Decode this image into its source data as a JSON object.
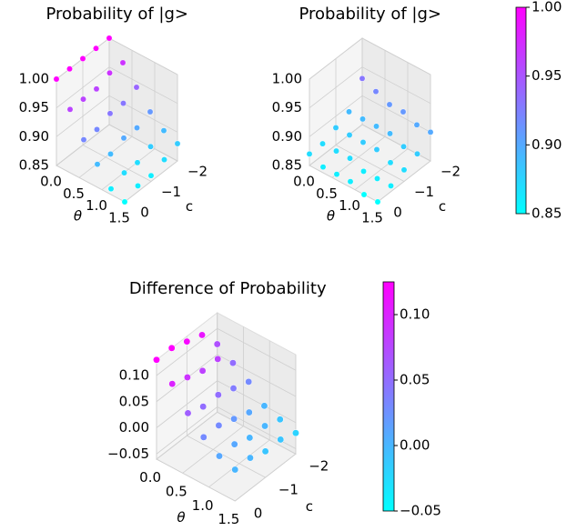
{
  "chart_data": [
    {
      "type": "scatter3d",
      "title": "Probability of |g>",
      "xlabel": "θ",
      "ylabel": "c",
      "x": [
        0,
        0,
        0,
        0,
        0,
        0.3,
        0.3,
        0.3,
        0.3,
        0.3,
        0.6,
        0.6,
        0.6,
        0.6,
        0.6,
        0.9,
        0.9,
        0.9,
        0.9,
        0.9,
        1.2,
        1.2,
        1.2,
        1.2,
        1.2,
        1.5,
        1.5,
        1.5,
        1.5,
        1.5
      ],
      "y": [
        -2,
        -1.5,
        -1,
        -0.5,
        0,
        -2,
        -1.5,
        -1,
        -0.5,
        0,
        -2,
        -1.5,
        -1,
        -0.5,
        0,
        -2,
        -1.5,
        -1,
        -0.5,
        0,
        -2,
        -1.5,
        -1,
        -0.5,
        0,
        -2,
        -1.5,
        -1,
        -0.5,
        0
      ],
      "z": [
        1.0,
        1.0,
        1.0,
        1.0,
        1.0,
        0.97,
        0.97,
        0.96,
        0.96,
        0.96,
        0.94,
        0.93,
        0.93,
        0.92,
        0.92,
        0.91,
        0.9,
        0.9,
        0.89,
        0.89,
        0.89,
        0.88,
        0.87,
        0.87,
        0.86,
        0.88,
        0.87,
        0.86,
        0.86,
        0.85
      ],
      "xlim": [
        0,
        1.5
      ],
      "xticks": [
        {
          "value": 0,
          "label": "0.0"
        },
        0.5,
        {
          "value": 1,
          "label": "1.0"
        },
        1.5
      ],
      "ylim": [
        0,
        -2
      ],
      "yticks": [
        {
          "value": -2,
          "label": "−2"
        },
        {
          "value": -1,
          "label": "−1"
        },
        0
      ],
      "zlim": [
        0.85,
        1.0
      ],
      "zticks": [
        0.85,
        {
          "value": 0.9,
          "label": "0.90"
        },
        0.95,
        {
          "value": 1,
          "label": "1.00"
        }
      ],
      "clim": [
        0.85,
        1.0
      ],
      "colormap": [
        "#00ffff",
        "#ff00ff"
      ]
    },
    {
      "type": "scatter3d",
      "title": "Probability of |g>",
      "xlabel": "θ",
      "ylabel": "c",
      "x": [
        0,
        0,
        0,
        0,
        0,
        0.3,
        0.3,
        0.3,
        0.3,
        0.3,
        0.6,
        0.6,
        0.6,
        0.6,
        0.6,
        0.9,
        0.9,
        0.9,
        0.9,
        0.9,
        1.2,
        1.2,
        1.2,
        1.2,
        1.2,
        1.5,
        1.5,
        1.5,
        1.5,
        1.5
      ],
      "y": [
        -2,
        -1.5,
        -1,
        -0.5,
        0,
        -2,
        -1.5,
        -1,
        -0.5,
        0,
        -2,
        -1.5,
        -1,
        -0.5,
        0,
        -2,
        -1.5,
        -1,
        -0.5,
        0,
        -2,
        -1.5,
        -1,
        -0.5,
        0,
        -2,
        -1.5,
        -1,
        -0.5,
        0
      ],
      "z": [
        0.93,
        0.89,
        0.88,
        0.87,
        0.87,
        0.92,
        0.89,
        0.88,
        0.87,
        0.86,
        0.91,
        0.89,
        0.88,
        0.87,
        0.86,
        0.91,
        0.89,
        0.88,
        0.86,
        0.86,
        0.9,
        0.88,
        0.87,
        0.86,
        0.85,
        0.9,
        0.88,
        0.87,
        0.86,
        0.85
      ],
      "xlim": [
        0,
        1.5
      ],
      "xticks": [
        {
          "value": 0,
          "label": "0.0"
        },
        0.5,
        {
          "value": 1,
          "label": "1.0"
        },
        1.5
      ],
      "ylim": [
        0,
        -2
      ],
      "yticks": [
        {
          "value": -2,
          "label": "−2"
        },
        {
          "value": -1,
          "label": "−1"
        },
        0
      ],
      "zlim": [
        0.85,
        1.0
      ],
      "zticks": [
        0.85,
        {
          "value": 0.9,
          "label": "0.90"
        },
        0.95,
        {
          "value": 1,
          "label": "1.00"
        }
      ],
      "clim": [
        0.85,
        1.0
      ],
      "cticks": [
        0.85,
        {
          "value": 0.9,
          "label": "0.90"
        },
        0.95,
        {
          "value": 1,
          "label": "1.00"
        }
      ],
      "colormap": [
        "#00ffff",
        "#ff00ff"
      ]
    },
    {
      "type": "scatter3d",
      "title": "Difference of Probability",
      "xlabel": "θ",
      "ylabel": "c",
      "x": [
        0,
        0,
        0,
        0,
        0,
        0.3,
        0.3,
        0.3,
        0.3,
        0.3,
        0.6,
        0.6,
        0.6,
        0.6,
        0.6,
        0.9,
        0.9,
        0.9,
        0.9,
        0.9,
        1.2,
        1.2,
        1.2,
        1.2,
        1.2,
        1.5,
        1.5,
        1.5,
        1.5,
        1.5
      ],
      "y": [
        -2,
        -1.5,
        -1,
        -0.5,
        0,
        -2,
        -1.5,
        -1,
        -0.5,
        0,
        -2,
        -1.5,
        -1,
        -0.5,
        0,
        -2,
        -1.5,
        -1,
        -0.5,
        0,
        -2,
        -1.5,
        -1,
        -0.5,
        0,
        -2,
        -1.5,
        -1,
        -0.5,
        0
      ],
      "z": [
        0.07,
        0.11,
        0.12,
        0.13,
        0.13,
        0.05,
        0.08,
        0.08,
        0.09,
        0.1,
        0.03,
        0.04,
        0.05,
        0.05,
        0.06,
        0.0,
        0.01,
        0.02,
        0.03,
        0.03,
        -0.01,
        0.0,
        0.0,
        0.01,
        0.01,
        -0.02,
        -0.01,
        -0.01,
        0.0,
        0.0
      ],
      "xlim": [
        0,
        1.5
      ],
      "xticks": [
        {
          "value": 0,
          "label": "0.0"
        },
        0.5,
        {
          "value": 1,
          "label": "1.0"
        },
        1.5
      ],
      "ylim": [
        0,
        -2
      ],
      "yticks": [
        {
          "value": -2,
          "label": "−2"
        },
        {
          "value": -1,
          "label": "−1"
        },
        0
      ],
      "zlim": [
        -0.06,
        0.13
      ],
      "zticks": [
        {
          "value": -0.05,
          "label": "−0.05"
        },
        {
          "value": 0,
          "label": "0.00"
        },
        0.05,
        {
          "value": 0.1,
          "label": "0.10"
        }
      ],
      "clim": [
        -0.05,
        0.125
      ],
      "cticks": [
        {
          "value": -0.05,
          "label": "−0.05"
        },
        {
          "value": 0,
          "label": "0.00"
        },
        0.05,
        {
          "value": 0.1,
          "label": "0.10"
        }
      ],
      "colormap": [
        "#00ffff",
        "#ff00ff"
      ]
    }
  ]
}
